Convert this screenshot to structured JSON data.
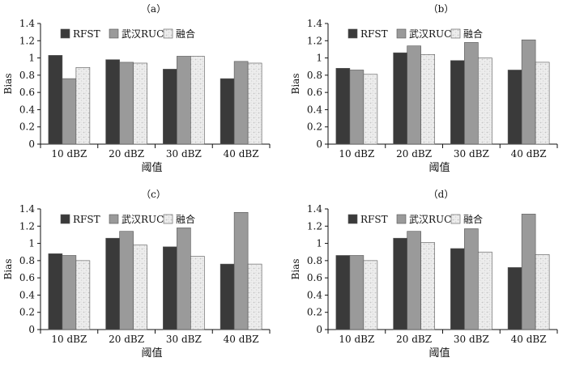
{
  "chart_data": [
    {
      "type": "bar",
      "title": "（a）",
      "xlabel": "阈值",
      "ylabel": "Bias",
      "ylim": [
        0,
        1.4
      ],
      "yticks": [
        "0",
        "0.2",
        "0.4",
        "0.6",
        "0.8",
        "1",
        "1.2",
        "1.4"
      ],
      "categories": [
        "10 dBZ",
        "20 dBZ",
        "30 dBZ",
        "40 dBZ"
      ],
      "legend_position": "top-left",
      "grid": false,
      "series": [
        {
          "name": "RFST",
          "values": [
            1.03,
            0.98,
            0.87,
            0.76
          ]
        },
        {
          "name": "武汉RUC",
          "values": [
            0.76,
            0.95,
            1.02,
            0.96
          ]
        },
        {
          "name": "融合",
          "values": [
            0.89,
            0.94,
            1.02,
            0.94
          ]
        }
      ]
    },
    {
      "type": "bar",
      "title": "（b）",
      "xlabel": "阈值",
      "ylabel": "Bias",
      "ylim": [
        0,
        1.4
      ],
      "yticks": [
        "0",
        "0.2",
        "0.4",
        "0.6",
        "0.8",
        "1",
        "1.2",
        "1.4"
      ],
      "categories": [
        "10 dBZ",
        "20 dBZ",
        "30 dBZ",
        "40 dBZ"
      ],
      "legend_position": "top-left",
      "grid": false,
      "series": [
        {
          "name": "RFST",
          "values": [
            0.88,
            1.06,
            0.97,
            0.86
          ]
        },
        {
          "name": "武汉RUC",
          "values": [
            0.86,
            1.14,
            1.18,
            1.21
          ]
        },
        {
          "name": "融合",
          "values": [
            0.81,
            1.04,
            1.0,
            0.95
          ]
        }
      ]
    },
    {
      "type": "bar",
      "title": "（c）",
      "xlabel": "阈值",
      "ylabel": "Bias",
      "ylim": [
        0,
        1.4
      ],
      "yticks": [
        "0",
        "0.2",
        "0.4",
        "0.6",
        "0.8",
        "1",
        "1.2",
        "1.4"
      ],
      "categories": [
        "10 dBZ",
        "20 dBZ",
        "30 dBZ",
        "40 dBZ"
      ],
      "legend_position": "top-left",
      "grid": false,
      "series": [
        {
          "name": "RFST",
          "values": [
            0.88,
            1.06,
            0.96,
            0.76
          ]
        },
        {
          "name": "武汉RUC",
          "values": [
            0.86,
            1.14,
            1.18,
            1.36
          ]
        },
        {
          "name": "融合",
          "values": [
            0.8,
            0.98,
            0.85,
            0.76
          ]
        }
      ]
    },
    {
      "type": "bar",
      "title": "（d）",
      "xlabel": "阈值",
      "ylabel": "Bias",
      "ylim": [
        0,
        1.4
      ],
      "yticks": [
        "0",
        "0.2",
        "0.4",
        "0.6",
        "0.8",
        "1",
        "1.2",
        "1.4"
      ],
      "categories": [
        "10 dBZ",
        "20 dBZ",
        "30 dBZ",
        "40 dBZ"
      ],
      "legend_position": "top-left",
      "grid": false,
      "series": [
        {
          "name": "RFST",
          "values": [
            0.86,
            1.06,
            0.94,
            0.72
          ]
        },
        {
          "name": "武汉RUC",
          "values": [
            0.86,
            1.14,
            1.17,
            1.34
          ]
        },
        {
          "name": "融合",
          "values": [
            0.8,
            1.01,
            0.9,
            0.87
          ]
        }
      ]
    }
  ],
  "colors": {
    "RFST": "#3a3a3a",
    "武汉RUC": "#9a9a9a",
    "融合": "#ececec",
    "axis": "#111111"
  }
}
